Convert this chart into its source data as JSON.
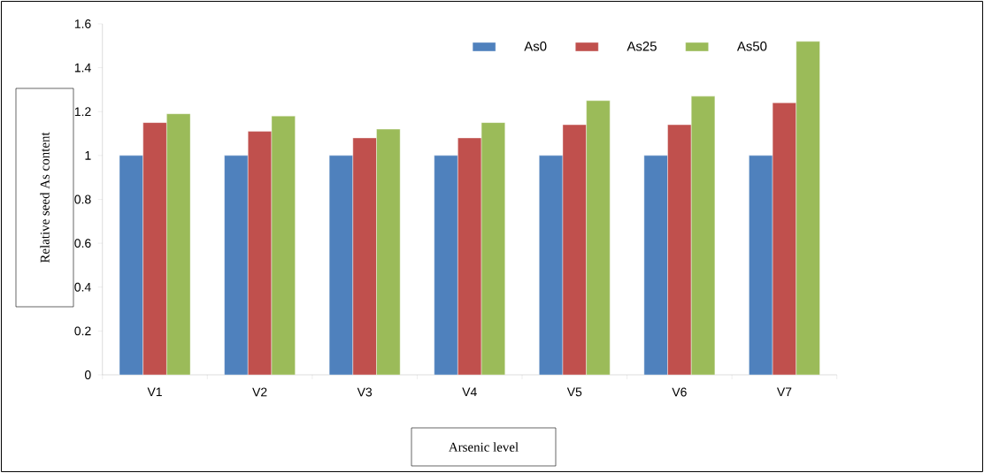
{
  "chart_data": {
    "type": "bar",
    "xlabel": "Arsenic level",
    "ylabel": "Relative seed As content",
    "categories": [
      "V1",
      "V2",
      "V3",
      "V4",
      "V5",
      "V6",
      "V7"
    ],
    "series": [
      {
        "name": "As0",
        "color": "#4f81bd",
        "values": [
          1,
          1,
          1,
          1,
          1,
          1,
          1
        ]
      },
      {
        "name": "As25",
        "color": "#c0504d",
        "values": [
          1.15,
          1.11,
          1.08,
          1.08,
          1.14,
          1.14,
          1.24
        ]
      },
      {
        "name": "As50",
        "color": "#9bbb59",
        "values": [
          1.19,
          1.18,
          1.12,
          1.15,
          1.25,
          1.27,
          1.52
        ]
      }
    ],
    "ylim": [
      0,
      1.6
    ],
    "yticks": [
      0,
      0.2,
      0.4,
      0.6,
      0.8,
      1,
      1.2,
      1.4,
      1.6
    ],
    "legend": "top right",
    "grid": false
  }
}
